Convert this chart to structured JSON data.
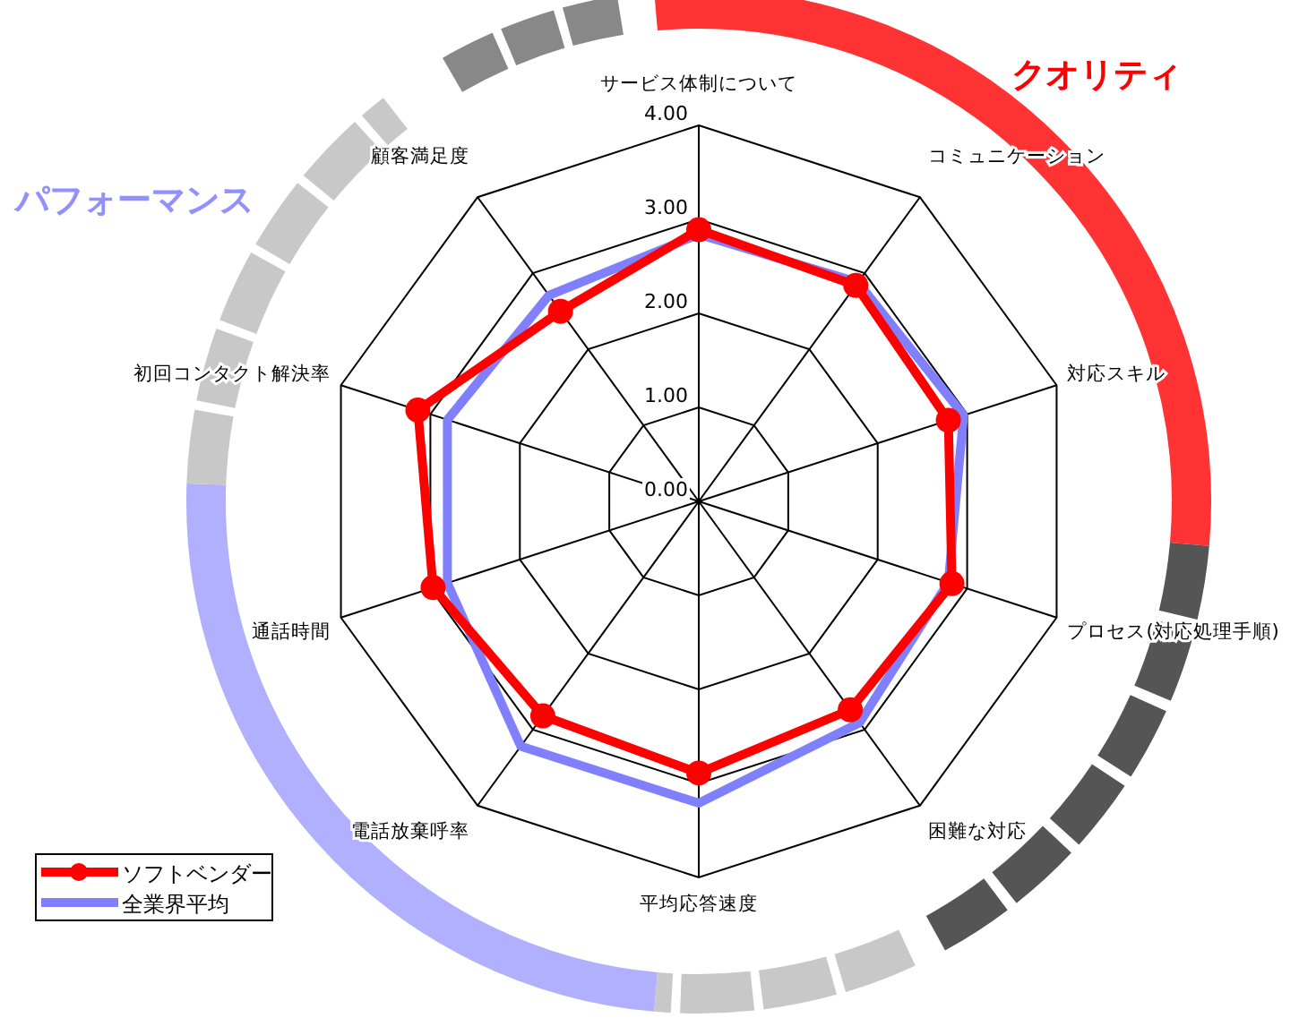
{
  "chart_data": {
    "type": "radar",
    "categories": [
      "サービス体制について",
      "コミュニケーション",
      "対応スキル",
      "プロセス(対応処理手順)",
      "困難な対応",
      "平均応答速度",
      "電話放棄呼率",
      "通話時間",
      "初回コンタクト解決率",
      "顧客満足度"
    ],
    "series": [
      {
        "name": "ソフトベンダー",
        "color": "#ff0000",
        "marker": "circle",
        "values": [
          2.89,
          2.84,
          2.79,
          2.83,
          2.74,
          2.89,
          2.82,
          2.97,
          3.14,
          2.5
        ]
      },
      {
        "name": "全業界平均",
        "color": "#8080ff",
        "marker": "none",
        "values": [
          2.84,
          2.88,
          2.96,
          2.79,
          2.91,
          3.21,
          3.22,
          2.81,
          2.81,
          2.71
        ]
      }
    ],
    "ylim": [
      0,
      4
    ],
    "yticks": [
      {
        "value": 0,
        "label": "0.00"
      },
      {
        "value": 1,
        "label": "1.00"
      },
      {
        "value": 2,
        "label": "2.00"
      },
      {
        "value": 3,
        "label": "3.00"
      },
      {
        "value": 4,
        "label": "4.00"
      }
    ],
    "legend": "bottom left",
    "annotations": [
      "クオリティ",
      "パフォーマンス"
    ]
  }
}
